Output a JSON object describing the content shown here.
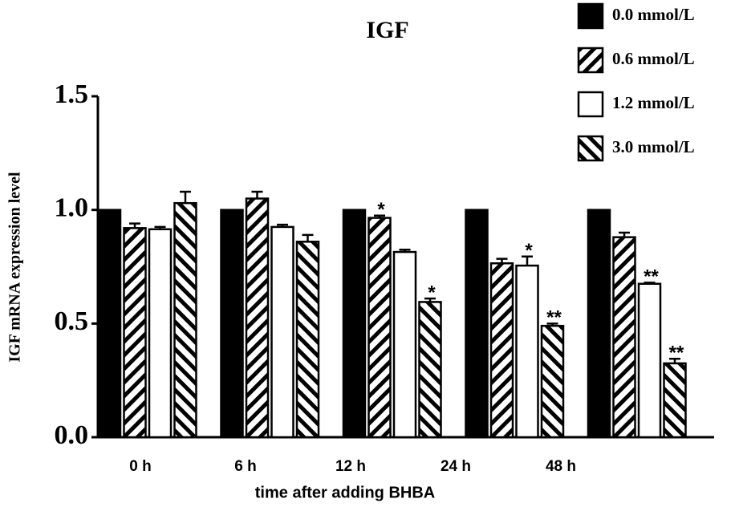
{
  "chart_data": {
    "type": "bar",
    "title": "IGF",
    "x_label": "time after adding BHBA",
    "y_label": "IGF mRNA expression level",
    "categories": [
      "0 h",
      "6 h",
      "12 h",
      "24 h",
      "48 h"
    ],
    "series": [
      {
        "name": "0.0 mmol/L",
        "color": "#000000",
        "hatch": null,
        "values": [
          1.0,
          1.0,
          1.0,
          1.0,
          1.0
        ]
      },
      {
        "name": "0.6 mmol/L",
        "color": "#ffffff",
        "hatch": "/",
        "values": [
          0.92,
          1.05,
          0.965,
          0.765,
          0.88
        ],
        "errors": [
          0.02,
          0.03,
          0.01,
          0.02,
          0.02
        ],
        "annotations": [
          null,
          null,
          "*",
          null,
          null
        ]
      },
      {
        "name": "1.2 mmol/L",
        "color": "#ffffff",
        "hatch": null,
        "values": [
          0.915,
          0.925,
          0.815,
          0.755,
          0.675
        ],
        "errors": [
          0.01,
          0.01,
          0.01,
          0.04,
          0.005
        ],
        "annotations": [
          null,
          null,
          null,
          "*",
          "**"
        ]
      },
      {
        "name": "3.0 mmol/L",
        "color": "#ffffff",
        "hatch": "\\",
        "values": [
          1.03,
          0.86,
          0.595,
          0.49,
          0.325
        ],
        "errors": [
          0.05,
          0.03,
          0.015,
          0.01,
          0.02
        ],
        "annotations": [
          null,
          null,
          "*",
          "**",
          "**"
        ]
      }
    ],
    "ylim": [
      0,
      1.5
    ],
    "yticks": [
      {
        "value": 0,
        "label": "0.0"
      },
      0.5,
      {
        "value": 1,
        "label": "1.0"
      },
      1.5
    ],
    "legend": "top-right"
  }
}
